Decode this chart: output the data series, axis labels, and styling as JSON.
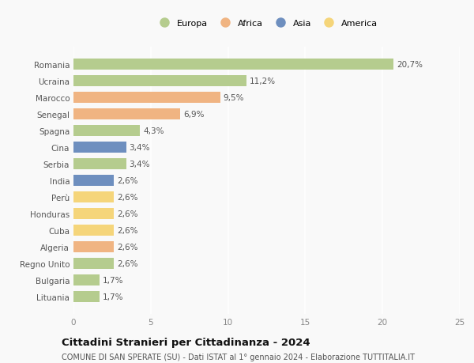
{
  "categories": [
    "Romania",
    "Ucraina",
    "Marocco",
    "Senegal",
    "Spagna",
    "Cina",
    "Serbia",
    "India",
    "Perù",
    "Honduras",
    "Cuba",
    "Algeria",
    "Regno Unito",
    "Bulgaria",
    "Lituania"
  ],
  "values": [
    20.7,
    11.2,
    9.5,
    6.9,
    4.3,
    3.4,
    3.4,
    2.6,
    2.6,
    2.6,
    2.6,
    2.6,
    2.6,
    1.7,
    1.7
  ],
  "labels": [
    "20,7%",
    "11,2%",
    "9,5%",
    "6,9%",
    "4,3%",
    "3,4%",
    "3,4%",
    "2,6%",
    "2,6%",
    "2,6%",
    "2,6%",
    "2,6%",
    "2,6%",
    "1,7%",
    "1,7%"
  ],
  "continents": [
    "Europa",
    "Europa",
    "Africa",
    "Africa",
    "Europa",
    "Asia",
    "Europa",
    "Asia",
    "America",
    "America",
    "America",
    "Africa",
    "Europa",
    "Europa",
    "Europa"
  ],
  "continent_colors": {
    "Europa": "#b5cc8e",
    "Africa": "#f0b482",
    "Asia": "#6e8fbf",
    "America": "#f5d57a"
  },
  "legend_order": [
    "Europa",
    "Africa",
    "Asia",
    "America"
  ],
  "xlim": [
    0,
    25
  ],
  "xticks": [
    0,
    5,
    10,
    15,
    20,
    25
  ],
  "title": "Cittadini Stranieri per Cittadinanza - 2024",
  "subtitle": "COMUNE DI SAN SPERATE (SU) - Dati ISTAT al 1° gennaio 2024 - Elaborazione TUTTITALIA.IT",
  "background_color": "#f9f9f9",
  "grid_color": "#ffffff",
  "bar_height": 0.65,
  "label_fontsize": 7.5,
  "title_fontsize": 9.5,
  "subtitle_fontsize": 7,
  "ytick_fontsize": 7.5,
  "xtick_fontsize": 7.5,
  "legend_fontsize": 8
}
